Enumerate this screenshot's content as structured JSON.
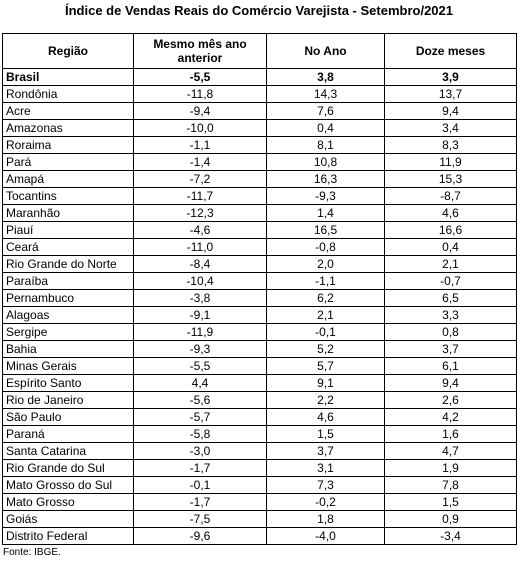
{
  "header": {
    "title": "Índice de Vendas Reais do Comércio Varejista - Setembro/2021"
  },
  "table": {
    "columns": [
      "Região",
      "Mesmo mês ano anterior",
      "No Ano",
      "Doze meses"
    ],
    "rows": [
      [
        "Brasil",
        "-5,5",
        "3,8",
        "3,9"
      ],
      [
        "Rondônia",
        "-11,8",
        "14,3",
        "13,7"
      ],
      [
        "Acre",
        "-9,4",
        "7,6",
        "9,4"
      ],
      [
        "Amazonas",
        "-10,0",
        "0,4",
        "3,4"
      ],
      [
        "Roraima",
        "-1,1",
        "8,1",
        "8,3"
      ],
      [
        "Pará",
        "-1,4",
        "10,8",
        "11,9"
      ],
      [
        "Amapá",
        "-7,2",
        "16,3",
        "15,3"
      ],
      [
        "Tocantins",
        "-11,7",
        "-9,3",
        "-8,7"
      ],
      [
        "Maranhão",
        "-12,3",
        "1,4",
        "4,6"
      ],
      [
        "Piauí",
        "-4,6",
        "16,5",
        "16,6"
      ],
      [
        "Ceará",
        "-11,0",
        "-0,8",
        "0,4"
      ],
      [
        "Rio Grande do Norte",
        "-8,4",
        "2,0",
        "2,1"
      ],
      [
        "Paraíba",
        "-10,4",
        "-1,1",
        "-0,7"
      ],
      [
        "Pernambuco",
        "-3,8",
        "6,2",
        "6,5"
      ],
      [
        "Alagoas",
        "-9,1",
        "2,1",
        "3,3"
      ],
      [
        "Sergipe",
        "-11,9",
        "-0,1",
        "0,8"
      ],
      [
        "Bahia",
        "-9,3",
        "5,2",
        "3,7"
      ],
      [
        "Minas Gerais",
        "-5,5",
        "5,7",
        "6,1"
      ],
      [
        "Espírito Santo",
        "4,4",
        "9,1",
        "9,4"
      ],
      [
        "Rio de Janeiro",
        "-5,6",
        "2,2",
        "2,6"
      ],
      [
        "São Paulo",
        "-5,7",
        "4,6",
        "4,2"
      ],
      [
        "Paraná",
        "-5,8",
        "1,5",
        "1,6"
      ],
      [
        "Santa Catarina",
        "-3,0",
        "3,7",
        "4,7"
      ],
      [
        "Rio Grande do Sul",
        "-1,7",
        "3,1",
        "1,9"
      ],
      [
        "Mato Grosso do Sul",
        "-0,1",
        "7,3",
        "7,8"
      ],
      [
        "Mato Grosso",
        "-1,7",
        "-0,2",
        "1,5"
      ],
      [
        "Goiás",
        "-7,5",
        "1,8",
        "0,9"
      ],
      [
        "Distrito Federal",
        "-9,6",
        "-4,0",
        "-3,4"
      ]
    ]
  },
  "footer": {
    "source": "Fonte: IBGE."
  }
}
